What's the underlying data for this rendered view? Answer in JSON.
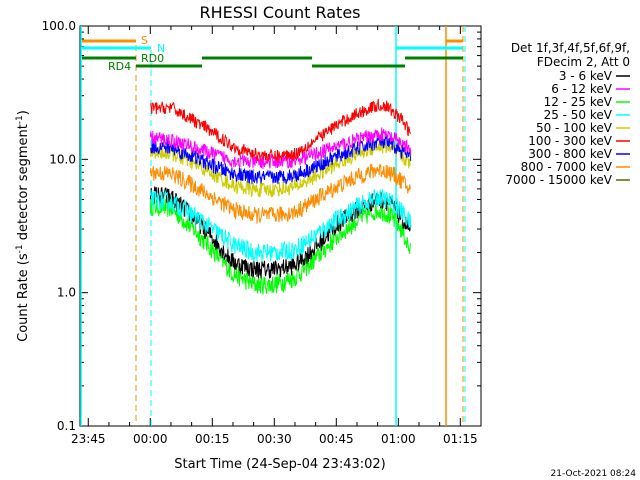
{
  "chart_data": {
    "type": "line",
    "title": "RHESSI Count Rates",
    "xlabel": "Start Time (24-Sep-04 23:43:02)",
    "ylabel_main": "Count Rate (s",
    "ylabel_sup1": "-1",
    "ylabel_mid": " detector segment",
    "ylabel_sup2": "-1",
    "ylabel_end": ")",
    "yscale": "log",
    "ylim": [
      0.1,
      100
    ],
    "xlim_minutes_after_2343": [
      0,
      97
    ],
    "xticks": [
      {
        "t": 2,
        "label": "23:45"
      },
      {
        "t": 17,
        "label": "00:00"
      },
      {
        "t": 32,
        "label": "00:15"
      },
      {
        "t": 47,
        "label": "00:30"
      },
      {
        "t": 62,
        "label": "00:45"
      },
      {
        "t": 77,
        "label": "01:00"
      },
      {
        "t": 92,
        "label": "01:15"
      }
    ],
    "yticks": [
      {
        "v": 0.1,
        "label": "0.1"
      },
      {
        "v": 1,
        "label": "1.0"
      },
      {
        "v": 10,
        "label": "10.0"
      },
      {
        "v": 100,
        "label": "100.0"
      }
    ],
    "legend_header": [
      "Det 1f,3f,4f,5f,6f,9f,",
      "FDecim 2, Att 0"
    ],
    "series": [
      {
        "name": "3 - 6 keV",
        "color": "#000000",
        "values": [
          [
            17,
            5.5
          ],
          [
            22,
            5.2
          ],
          [
            27,
            3.8
          ],
          [
            32,
            2.6
          ],
          [
            37,
            1.7
          ],
          [
            42,
            1.5
          ],
          [
            47,
            1.5
          ],
          [
            52,
            1.6
          ],
          [
            57,
            2.2
          ],
          [
            62,
            3.2
          ],
          [
            67,
            4.2
          ],
          [
            72,
            5.0
          ],
          [
            74,
            4.9
          ],
          [
            76,
            4.3
          ],
          [
            78,
            3.6
          ],
          [
            80,
            2.8
          ]
        ]
      },
      {
        "name": "6 - 12 keV",
        "color": "#ff00ff",
        "values": [
          [
            17,
            14.5
          ],
          [
            22,
            14
          ],
          [
            27,
            12.5
          ],
          [
            32,
            11
          ],
          [
            37,
            9.8
          ],
          [
            42,
            9.5
          ],
          [
            47,
            9.6
          ],
          [
            52,
            9.8
          ],
          [
            57,
            11
          ],
          [
            62,
            12.5
          ],
          [
            67,
            14
          ],
          [
            72,
            15.5
          ],
          [
            74,
            15.2
          ],
          [
            76,
            14.2
          ],
          [
            78,
            13.2
          ],
          [
            80,
            11.5
          ]
        ]
      },
      {
        "name": "12 - 25 keV",
        "color": "#00ff00",
        "values": [
          [
            17,
            4.5
          ],
          [
            22,
            4.3
          ],
          [
            27,
            3.1
          ],
          [
            32,
            2.1
          ],
          [
            37,
            1.4
          ],
          [
            42,
            1.15
          ],
          [
            47,
            1.15
          ],
          [
            52,
            1.3
          ],
          [
            57,
            1.8
          ],
          [
            62,
            2.6
          ],
          [
            67,
            3.5
          ],
          [
            72,
            4.2
          ],
          [
            74,
            4.0
          ],
          [
            76,
            3.5
          ],
          [
            78,
            2.9
          ],
          [
            80,
            2.0
          ]
        ]
      },
      {
        "name": "25 - 50 keV",
        "color": "#00ffff",
        "values": [
          [
            17,
            5.0
          ],
          [
            22,
            4.8
          ],
          [
            27,
            3.9
          ],
          [
            32,
            3.0
          ],
          [
            37,
            2.3
          ],
          [
            42,
            2.0
          ],
          [
            47,
            2.0
          ],
          [
            52,
            2.1
          ],
          [
            57,
            2.7
          ],
          [
            62,
            3.5
          ],
          [
            67,
            4.4
          ],
          [
            72,
            5.2
          ],
          [
            74,
            5.0
          ],
          [
            76,
            4.6
          ],
          [
            78,
            4.0
          ],
          [
            80,
            3.3
          ]
        ]
      },
      {
        "name": "50 - 100 keV",
        "color": "#cccc00",
        "values": [
          [
            17,
            11.5
          ],
          [
            22,
            11.2
          ],
          [
            27,
            9.4
          ],
          [
            32,
            7.8
          ],
          [
            37,
            6.4
          ],
          [
            42,
            5.9
          ],
          [
            47,
            5.9
          ],
          [
            52,
            6.2
          ],
          [
            57,
            7.5
          ],
          [
            62,
            9.2
          ],
          [
            67,
            11
          ],
          [
            72,
            12.5
          ],
          [
            74,
            12.4
          ],
          [
            76,
            11.5
          ],
          [
            78,
            10.5
          ],
          [
            80,
            9.2
          ]
        ]
      },
      {
        "name": "100 - 300 keV",
        "color": "#ff0000",
        "values": [
          [
            17,
            24
          ],
          [
            22,
            24.5
          ],
          [
            27,
            20
          ],
          [
            32,
            16
          ],
          [
            37,
            12.5
          ],
          [
            42,
            11
          ],
          [
            47,
            10.5
          ],
          [
            52,
            11
          ],
          [
            57,
            14
          ],
          [
            62,
            18
          ],
          [
            67,
            22
          ],
          [
            72,
            25.5
          ],
          [
            74,
            25
          ],
          [
            76,
            22.5
          ],
          [
            78,
            19.5
          ],
          [
            80,
            15.5
          ]
        ]
      },
      {
        "name": "300 - 800 keV",
        "color": "#0000ff",
        "values": [
          [
            17,
            12.5
          ],
          [
            22,
            12.2
          ],
          [
            27,
            10.6
          ],
          [
            32,
            9.0
          ],
          [
            37,
            7.8
          ],
          [
            42,
            7.3
          ],
          [
            47,
            7.3
          ],
          [
            52,
            7.6
          ],
          [
            57,
            8.8
          ],
          [
            62,
            10.5
          ],
          [
            67,
            12
          ],
          [
            72,
            13.5
          ],
          [
            74,
            13.3
          ],
          [
            76,
            12.5
          ],
          [
            78,
            11.5
          ],
          [
            80,
            10.2
          ]
        ]
      },
      {
        "name": "800 - 7000 keV",
        "color": "#ff8c00",
        "values": [
          [
            17,
            8.0
          ],
          [
            22,
            7.8
          ],
          [
            27,
            6.5
          ],
          [
            32,
            5.2
          ],
          [
            37,
            4.2
          ],
          [
            42,
            3.8
          ],
          [
            47,
            3.8
          ],
          [
            52,
            4.0
          ],
          [
            57,
            5.0
          ],
          [
            62,
            6.2
          ],
          [
            67,
            7.4
          ],
          [
            72,
            8.4
          ],
          [
            74,
            8.2
          ],
          [
            76,
            7.6
          ],
          [
            78,
            6.8
          ],
          [
            80,
            5.8
          ]
        ]
      },
      {
        "name": "7000 - 15000 keV",
        "color": "#556b00",
        "values": []
      }
    ],
    "attenuator_flags": [
      {
        "label": "S",
        "color": "#ff8c00"
      },
      {
        "label": "N",
        "color": "#00ffff"
      },
      {
        "label": "RD0",
        "color": "#008000"
      },
      {
        "label": "RD4",
        "color": "#008000"
      }
    ],
    "timestamp": "21-Oct-2021 08:24"
  }
}
